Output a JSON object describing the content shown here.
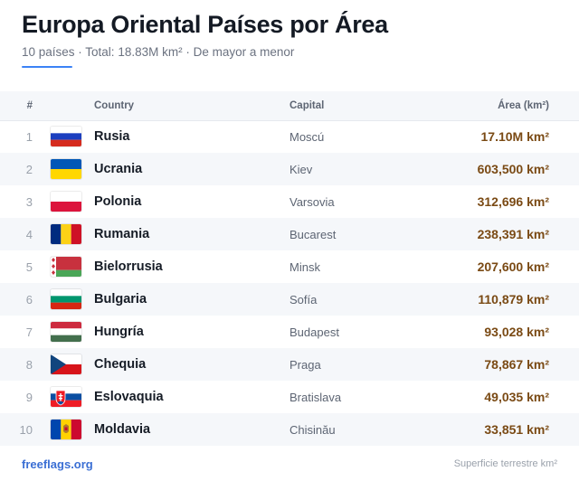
{
  "header": {
    "title": "Europa Oriental Países por Área",
    "subtitle": "10 países · Total: 18.83M km² · De mayor a menor"
  },
  "table": {
    "columns": {
      "num": "#",
      "country": "Country",
      "capital": "Capital",
      "area": "Área (km²)"
    },
    "rows": [
      {
        "num": "1",
        "country": "Rusia",
        "capital": "Moscú",
        "area": "17.10M km²",
        "flag": "russia-flag"
      },
      {
        "num": "2",
        "country": "Ucrania",
        "capital": "Kiev",
        "area": "603,500 km²",
        "flag": "ukraine-flag"
      },
      {
        "num": "3",
        "country": "Polonia",
        "capital": "Varsovia",
        "area": "312,696 km²",
        "flag": "poland-flag"
      },
      {
        "num": "4",
        "country": "Rumania",
        "capital": "Bucarest",
        "area": "238,391 km²",
        "flag": "romania-flag"
      },
      {
        "num": "5",
        "country": "Bielorrusia",
        "capital": "Minsk",
        "area": "207,600 km²",
        "flag": "belarus-flag"
      },
      {
        "num": "6",
        "country": "Bulgaria",
        "capital": "Sofía",
        "area": "110,879 km²",
        "flag": "bulgaria-flag"
      },
      {
        "num": "7",
        "country": "Hungría",
        "capital": "Budapest",
        "area": "93,028 km²",
        "flag": "hungary-flag"
      },
      {
        "num": "8",
        "country": "Chequia",
        "capital": "Praga",
        "area": "78,867 km²",
        "flag": "czechia-flag"
      },
      {
        "num": "9",
        "country": "Eslovaquia",
        "capital": "Bratislava",
        "area": "49,035 km²",
        "flag": "slovakia-flag"
      },
      {
        "num": "10",
        "country": "Moldavia",
        "capital": "Chisinău",
        "area": "33,851 km²",
        "flag": "moldova-flag"
      }
    ]
  },
  "footer": {
    "source": "freeflags.org",
    "note": "Superficie terrestre km²"
  },
  "colors": {
    "accent": "#3b82f6",
    "area_text": "#7a4a14",
    "stripe": "#f5f7fa"
  }
}
